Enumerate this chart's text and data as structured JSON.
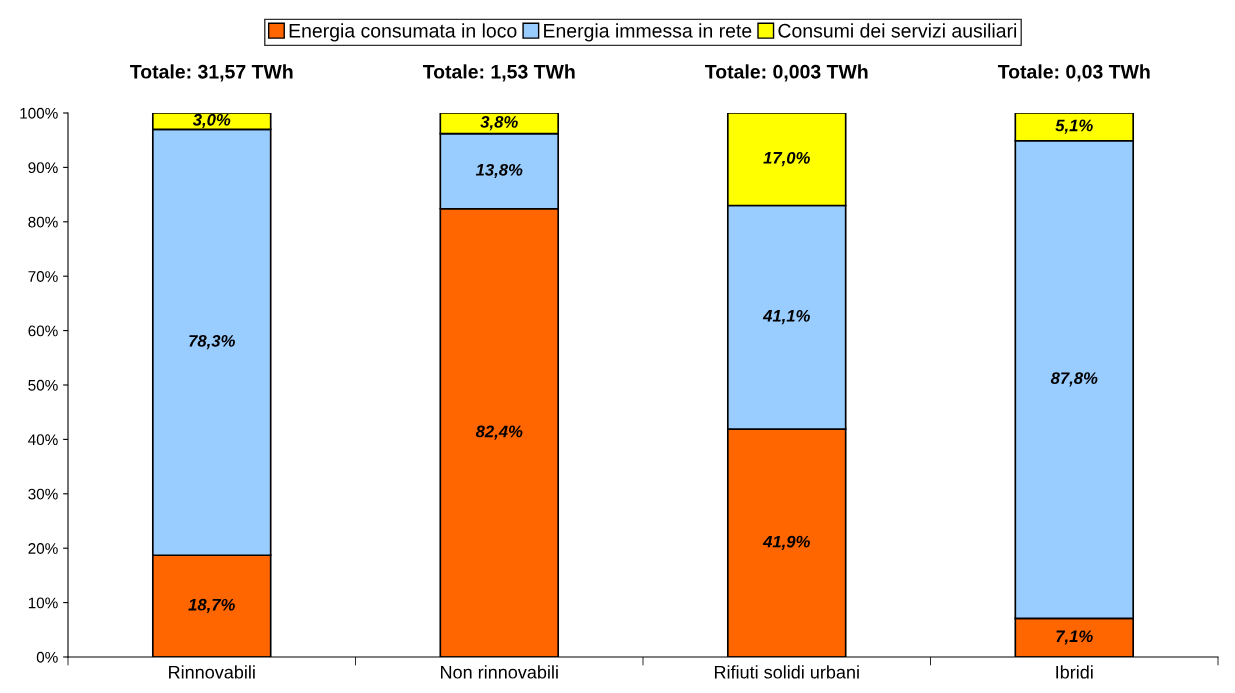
{
  "chart_data": {
    "type": "bar",
    "stacked": true,
    "categories": [
      "Rinnovabili",
      "Non rinnovabili",
      "Rifiuti solidi urbani",
      "Ibridi"
    ],
    "series": [
      {
        "name": "Energia consumata in loco",
        "color": "#ff6600",
        "values": [
          18.7,
          82.4,
          41.9,
          7.1
        ],
        "value_labels": [
          "18,7%",
          "82,4%",
          "41,9%",
          "7,1%"
        ]
      },
      {
        "name": "Energia immessa in rete",
        "color": "#99ccff",
        "values": [
          78.3,
          13.8,
          41.1,
          87.8
        ],
        "value_labels": [
          "78,3%",
          "13,8%",
          "41,1%",
          "87,8%"
        ]
      },
      {
        "name": "Consumi dei servizi ausiliari",
        "color": "#ffff00",
        "values": [
          3.0,
          3.8,
          17.0,
          5.1
        ],
        "value_labels": [
          "3,0%",
          "3,8%",
          "17,0%",
          "5,1%"
        ]
      }
    ],
    "annotations": [
      {
        "text": "Totale: 31,57 TWh",
        "x": "Rinnovabili",
        "y": 100
      },
      {
        "text": "Totale: 1,53 TWh",
        "x": "Non rinnovabili",
        "y": 100
      },
      {
        "text": "Totale: 0,003 TWh",
        "x": "Rifiuti solidi urbani",
        "y": 100
      },
      {
        "text": "Totale: 0,03 TWh",
        "x": "Ibridi",
        "y": 100
      }
    ],
    "ylim": [
      0,
      100
    ],
    "yticks": [
      {
        "value": 0,
        "label": "0%"
      },
      {
        "value": 10,
        "label": "10%"
      },
      {
        "value": 20,
        "label": "20%"
      },
      {
        "value": 30,
        "label": "30%"
      },
      {
        "value": 40,
        "label": "40%"
      },
      {
        "value": 50,
        "label": "50%"
      },
      {
        "value": 60,
        "label": "60%"
      },
      {
        "value": 70,
        "label": "70%"
      },
      {
        "value": 80,
        "label": "80%"
      },
      {
        "value": 90,
        "label": "90%"
      },
      {
        "value": 100,
        "label": "100%"
      }
    ],
    "grid": false,
    "legend": "top"
  }
}
